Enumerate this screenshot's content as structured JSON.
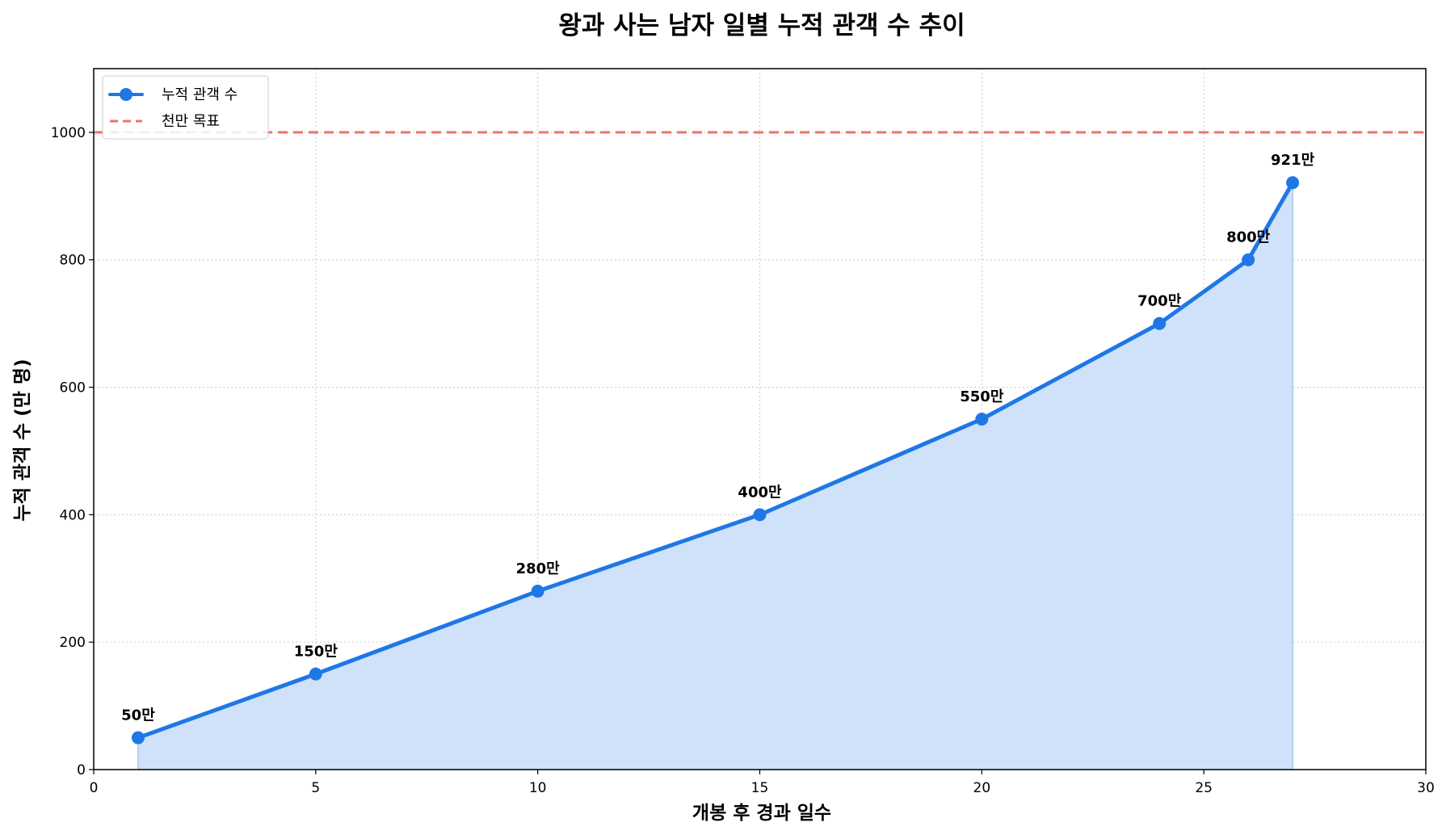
{
  "chart_data": {
    "type": "line",
    "title": "왕과 사는 남자 일별 누적 관객 수 추이",
    "xlabel": "개봉 후 경과 일수",
    "ylabel": "누적 관객 수 (만 명)",
    "xlim": [
      0,
      30
    ],
    "ylim": [
      0,
      1100
    ],
    "xticks": [
      0,
      5,
      10,
      15,
      20,
      25,
      30
    ],
    "yticks": [
      0,
      200,
      400,
      600,
      800,
      1000
    ],
    "grid": true,
    "legend_position": "top-left",
    "series": [
      {
        "name": "누적 관객 수",
        "color": "#1f77e6",
        "fill_color": "#cfe2fa",
        "x": [
          1,
          5,
          10,
          15,
          20,
          24,
          26,
          27
        ],
        "y": [
          50,
          150,
          280,
          400,
          550,
          700,
          800,
          921
        ],
        "labels": [
          "50만",
          "150만",
          "280만",
          "400만",
          "550만",
          "700만",
          "800만",
          "921만"
        ]
      }
    ],
    "reference_lines": [
      {
        "name": "천만 목표",
        "y": 1000,
        "color": "#ee7366"
      }
    ]
  }
}
